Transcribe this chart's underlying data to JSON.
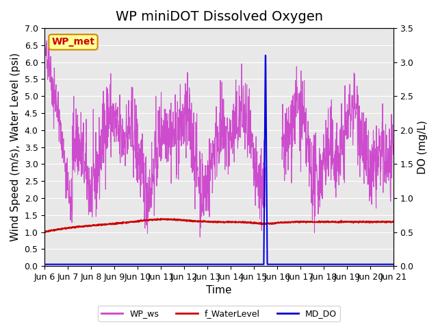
{
  "title": "WP miniDOT Dissolved Oxygen",
  "xlabel": "Time",
  "ylabel_left": "Wind Speed (m/s), Water Level (psi)",
  "ylabel_right": "DO (mg/L)",
  "ylim_left": [
    0.0,
    7.0
  ],
  "ylim_right": [
    0.0,
    3.5
  ],
  "yticks_left": [
    0.0,
    0.5,
    1.0,
    1.5,
    2.0,
    2.5,
    3.0,
    3.5,
    4.0,
    4.5,
    5.0,
    5.5,
    6.0,
    6.5,
    7.0
  ],
  "yticks_right": [
    0.0,
    0.5,
    1.0,
    1.5,
    2.0,
    2.5,
    3.0,
    3.5
  ],
  "xtick_labels": [
    "Jun 6",
    "Jun 7",
    "Jun 8",
    "Jun 9",
    "Jun 10",
    "Jun 11",
    "Jun 12",
    "Jun 13",
    "Jun 14",
    "Jun 15",
    "Jun 16",
    "Jun 17",
    "Jun 18",
    "Jun 19",
    "Jun 20",
    "Jun 21"
  ],
  "legend_labels": [
    "WP_ws",
    "f_WaterLevel",
    "MD_DO"
  ],
  "legend_colors": [
    "#cc44cc",
    "#cc0000",
    "#0000cc"
  ],
  "wp_ws_color": "#cc44cc",
  "f_wl_color": "#cc0000",
  "md_do_color": "#0000dd",
  "annotation_box_color": "#ffff99",
  "annotation_text": "WP_met",
  "annotation_text_color": "#cc0000",
  "background_color": "#e8e8e8",
  "figure_background": "#ffffff",
  "grid_color": "#ffffff",
  "title_fontsize": 14,
  "axis_label_fontsize": 11,
  "tick_fontsize": 9
}
